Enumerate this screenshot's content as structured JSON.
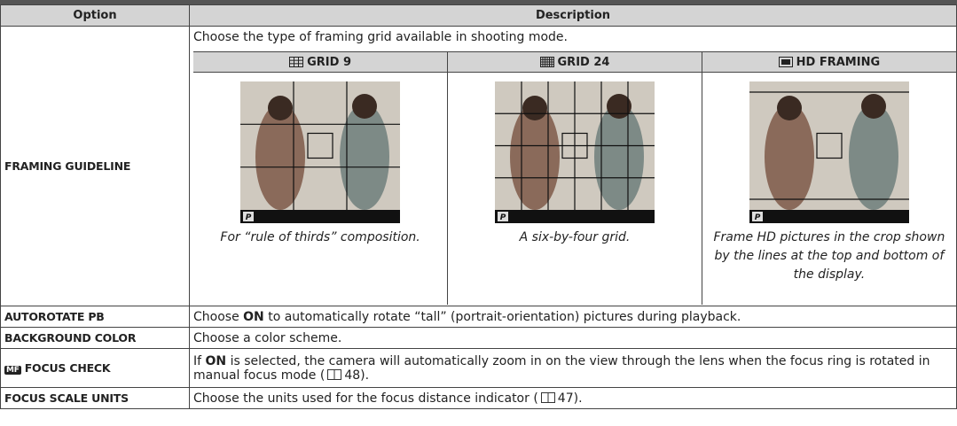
{
  "header": {
    "option": "Option",
    "description": "Description"
  },
  "framing": {
    "option": "FRAMING GUIDELINE",
    "intro": "Choose the type of framing grid available in shooting mode.",
    "modes": [
      {
        "label": "GRID 9",
        "caption": "For “rule of thirds” composition."
      },
      {
        "label": "GRID 24",
        "caption": "A six-by-four grid."
      },
      {
        "label": "HD FRAMING",
        "caption": "Frame HD pictures in the crop shown by the lines at the top and bottom of the display."
      }
    ],
    "screen_label": "P"
  },
  "autorotate": {
    "option": "AUTOROTATE PB",
    "before": "Choose ",
    "bold": "ON",
    "after": " to automatically rotate “tall” (portrait-orientation) pictures during playback."
  },
  "background": {
    "option": "BACKGROUND COLOR",
    "description": "Choose a color scheme."
  },
  "focus_check": {
    "option": "FOCUS CHECK",
    "icon": "MF",
    "before": "If ",
    "bold": "ON",
    "after": " is selected, the camera will automatically zoom in on the view through the lens when the focus ring is rotated in manual focus mode (",
    "page": "48",
    "end": ")."
  },
  "focus_scale": {
    "option": "FOCUS SCALE UNITS",
    "before": "Choose the units used for the focus distance indicator (",
    "page": "47",
    "end": ")."
  }
}
